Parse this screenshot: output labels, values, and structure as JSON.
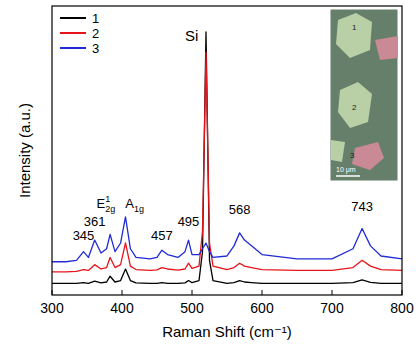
{
  "chart_data": {
    "type": "line",
    "x_label": "Raman Shift (cm⁻¹)",
    "y_label": "Intensity (a.u.)",
    "xlim": [
      300,
      800
    ],
    "xticks": [
      300,
      400,
      500,
      600,
      700,
      800
    ],
    "ylim": [
      0,
      100
    ],
    "tick_labels": "x",
    "legend": "upper left",
    "x": [
      300,
      320,
      335,
      345,
      352,
      361,
      370,
      378,
      383,
      390,
      398,
      405,
      412,
      420,
      440,
      450,
      457,
      465,
      480,
      490,
      495,
      500,
      510,
      515,
      520,
      525,
      530,
      550,
      560,
      568,
      575,
      585,
      600,
      650,
      700,
      730,
      743,
      755,
      770,
      800
    ],
    "series": [
      {
        "name": "1",
        "color": "#000000",
        "values": [
          4,
          4,
          4,
          4.3,
          4,
          4.8,
          4.2,
          4.5,
          6.5,
          4.5,
          5,
          9,
          5,
          4.2,
          4,
          4,
          4.3,
          4,
          4,
          4.2,
          5,
          4.3,
          5,
          15,
          91,
          12,
          5,
          4,
          4.3,
          5,
          4.5,
          4.3,
          4,
          4,
          4,
          4.3,
          5.2,
          4.4,
          4,
          4
        ]
      },
      {
        "name": "2",
        "color": "#e8141b",
        "values": [
          8,
          8,
          8.2,
          8.8,
          8.5,
          10.5,
          9,
          9.5,
          13,
          9.5,
          10.5,
          18,
          10,
          8.8,
          8.5,
          8.7,
          9.5,
          9,
          8.6,
          9,
          11,
          9.2,
          10,
          22,
          84,
          18,
          10,
          8.8,
          9.5,
          11,
          10,
          9.5,
          8.8,
          8.5,
          8.5,
          9.5,
          12,
          10,
          8.8,
          8.5
        ]
      },
      {
        "name": "3",
        "color": "#1f2bd6",
        "values": [
          11.5,
          11.5,
          12,
          15,
          13,
          19,
          14.5,
          16,
          21,
          15,
          18,
          27,
          16,
          13,
          12.5,
          13,
          15.5,
          14,
          13,
          15,
          19,
          14,
          14,
          16,
          18,
          15,
          13,
          13.5,
          17,
          21.5,
          19,
          17,
          14,
          12.5,
          12.5,
          16,
          23,
          17,
          13.5,
          12.5
        ]
      }
    ],
    "annotations": [
      {
        "text": "345",
        "x": 345,
        "y": 19
      },
      {
        "text": "361",
        "x": 361,
        "y": 24
      },
      {
        "text": "E",
        "sup": "1",
        "sub": "2g",
        "x": 377,
        "y": 30
      },
      {
        "text": "A",
        "sub": "1g",
        "x": 418,
        "y": 30
      },
      {
        "text": "457",
        "x": 457,
        "y": 19
      },
      {
        "text": "495",
        "x": 495,
        "y": 24
      },
      {
        "text": "568",
        "x": 568,
        "y": 28
      },
      {
        "text": "743",
        "x": 743,
        "y": 29
      },
      {
        "text": "Si",
        "x": 509,
        "y": 88
      }
    ],
    "inset": {
      "labels": [
        "1",
        "2",
        "3"
      ],
      "scale_bar": "10 μm"
    }
  }
}
